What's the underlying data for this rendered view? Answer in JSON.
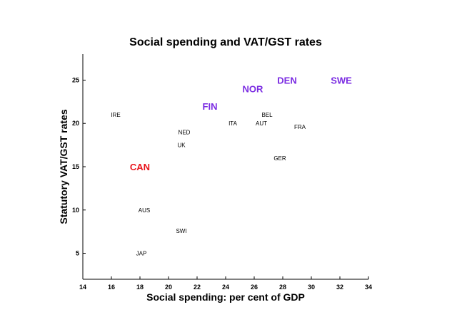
{
  "chart_data": {
    "type": "scatter",
    "title": "Social spending and VAT/GST rates",
    "xlabel": "Social spending: per cent of GDP",
    "ylabel": "Statutory VAT/GST rates",
    "xlim": [
      14,
      34
    ],
    "ylim": [
      2,
      28
    ],
    "xticks": [
      14,
      16,
      18,
      20,
      22,
      24,
      26,
      28,
      30,
      32,
      34
    ],
    "yticks": [
      5,
      10,
      15,
      20,
      25
    ],
    "grid": false,
    "points": [
      {
        "label": "IRE",
        "x": 16.3,
        "y": 21,
        "style": "small",
        "color": "#000000"
      },
      {
        "label": "CAN",
        "x": 18.0,
        "y": 15,
        "style": "big",
        "color": "#e8141c"
      },
      {
        "label": "AUS",
        "x": 18.3,
        "y": 10,
        "style": "small",
        "color": "#000000"
      },
      {
        "label": "JAP",
        "x": 18.1,
        "y": 5,
        "style": "small",
        "color": "#000000"
      },
      {
        "label": "NED",
        "x": 21.1,
        "y": 19,
        "style": "small",
        "color": "#000000"
      },
      {
        "label": "UK",
        "x": 20.9,
        "y": 17.5,
        "style": "small",
        "color": "#000000"
      },
      {
        "label": "SWI",
        "x": 20.9,
        "y": 7.6,
        "style": "small",
        "color": "#000000"
      },
      {
        "label": "FIN",
        "x": 22.9,
        "y": 22,
        "style": "big",
        "color": "#7a2be2"
      },
      {
        "label": "ITA",
        "x": 24.5,
        "y": 20,
        "style": "small",
        "color": "#000000"
      },
      {
        "label": "NOR",
        "x": 25.9,
        "y": 24,
        "style": "big",
        "color": "#7a2be2"
      },
      {
        "label": "BEL",
        "x": 26.9,
        "y": 21,
        "style": "small",
        "color": "#000000"
      },
      {
        "label": "AUT",
        "x": 26.5,
        "y": 20,
        "style": "small",
        "color": "#000000"
      },
      {
        "label": "DEN",
        "x": 28.3,
        "y": 25,
        "style": "big",
        "color": "#7a2be2"
      },
      {
        "label": "GER",
        "x": 27.8,
        "y": 16,
        "style": "small",
        "color": "#000000"
      },
      {
        "label": "FRA",
        "x": 29.2,
        "y": 19.6,
        "style": "small",
        "color": "#000000"
      },
      {
        "label": "SWE",
        "x": 32.1,
        "y": 25,
        "style": "big",
        "color": "#7a2be2"
      }
    ]
  }
}
